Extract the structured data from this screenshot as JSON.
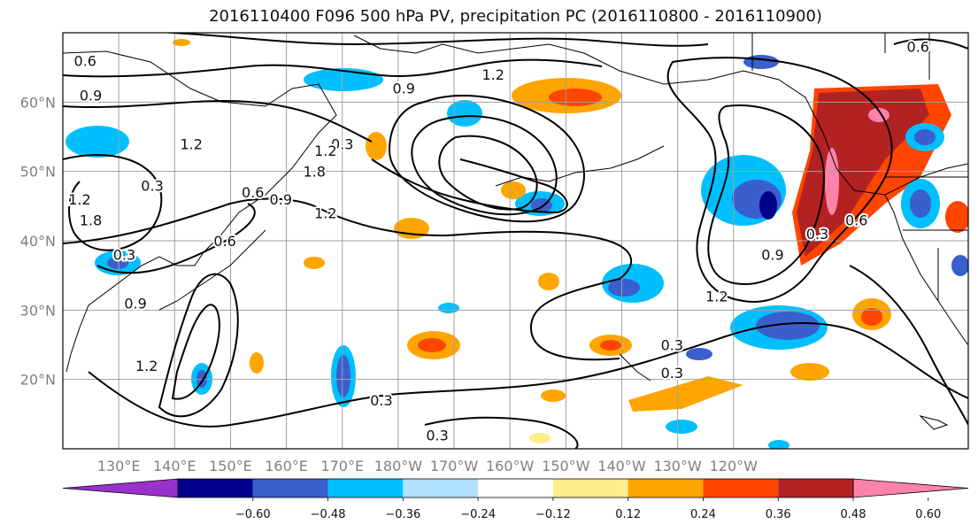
{
  "title": "2016110400 F096 500 hPa PV, precipitation PC (2016110800 - 2016110900)",
  "map": {
    "lat_ticks": [
      "60°N",
      "50°N",
      "40°N",
      "30°N",
      "20°N"
    ],
    "lon_ticks": [
      "130°E",
      "140°E",
      "150°E",
      "160°E",
      "170°E",
      "180°W",
      "170°W",
      "160°W",
      "150°W",
      "140°W",
      "130°W",
      "120°W"
    ]
  },
  "contour_labels": [
    {
      "text": "0.6",
      "lon": 124,
      "lat": 66
    },
    {
      "text": "1.2",
      "lon": 197,
      "lat": 64
    },
    {
      "text": "0.9",
      "lon": 181,
      "lat": 62
    },
    {
      "text": "0.9",
      "lon": 125,
      "lat": 61
    },
    {
      "text": "0.6",
      "lon": 273,
      "lat": 68
    },
    {
      "text": "0.3",
      "lon": 170,
      "lat": 54
    },
    {
      "text": "1.2",
      "lon": 167,
      "lat": 53
    },
    {
      "text": "1.2",
      "lon": 143,
      "lat": 54
    },
    {
      "text": "1.8",
      "lon": 165,
      "lat": 50
    },
    {
      "text": "0.3",
      "lon": 136,
      "lat": 48
    },
    {
      "text": "1.2",
      "lon": 123,
      "lat": 46
    },
    {
      "text": "0.6",
      "lon": 154,
      "lat": 47
    },
    {
      "text": "0.9",
      "lon": 159,
      "lat": 46
    },
    {
      "text": "1.2",
      "lon": 167,
      "lat": 44
    },
    {
      "text": "1.8",
      "lon": 125,
      "lat": 43
    },
    {
      "text": "0.3",
      "lon": 131,
      "lat": 38
    },
    {
      "text": "0.6",
      "lon": 149,
      "lat": 40
    },
    {
      "text": "0.6",
      "lon": 262,
      "lat": 43
    },
    {
      "text": "0.3",
      "lon": 255,
      "lat": 41
    },
    {
      "text": "0.9",
      "lon": 247,
      "lat": 38
    },
    {
      "text": "1.2",
      "lon": 237,
      "lat": 32
    },
    {
      "text": "0.9",
      "lon": 133,
      "lat": 31
    },
    {
      "text": "1.2",
      "lon": 135,
      "lat": 22
    },
    {
      "text": "0.3",
      "lon": 229,
      "lat": 25
    },
    {
      "text": "0.3",
      "lon": 229,
      "lat": 21
    },
    {
      "text": "0.3",
      "lon": 177,
      "lat": 17
    },
    {
      "text": "0.3",
      "lon": 187,
      "lat": 12
    }
  ],
  "colorbar": {
    "colors": [
      "#9932cc",
      "#00008b",
      "#3a5fcd",
      "#00bfff",
      "#b0e2ff",
      "#ffffff",
      "#ffec8b",
      "#ffa500",
      "#ff4500",
      "#b22222",
      "#ff82ab"
    ],
    "ticks": [
      "−0.60",
      "−0.48",
      "−0.36",
      "−0.24",
      "−0.12",
      "0.12",
      "0.24",
      "0.36",
      "0.48",
      "0.60"
    ]
  },
  "colors": {
    "frame": "#000000",
    "grid": "#a0a0a0",
    "contour": "#000000"
  }
}
